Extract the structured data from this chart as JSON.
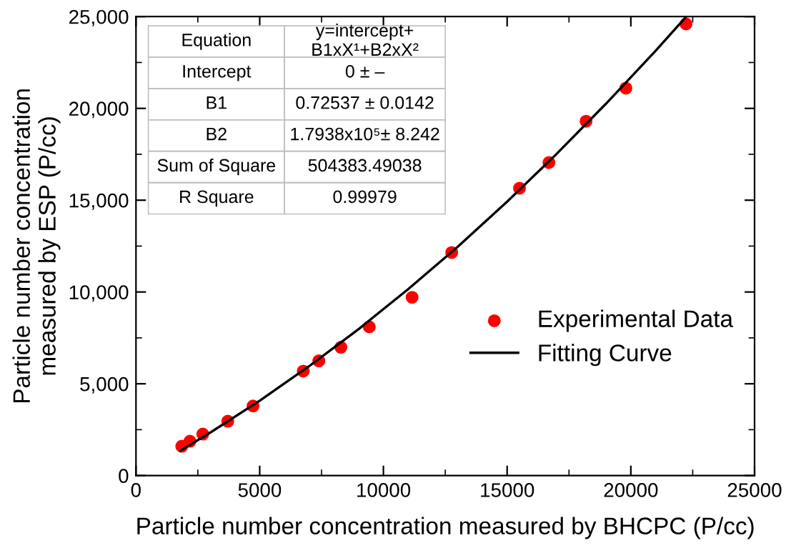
{
  "chart_data": {
    "type": "scatter",
    "xlabel": "Particle number concentration measured by BHCPC (P/cc)",
    "ylabel": "Particle number concentration\nmeasured by ESP (P/cc)",
    "xlim": [
      0,
      25000
    ],
    "ylim": [
      0,
      25000
    ],
    "xticks": [
      0,
      5000,
      10000,
      15000,
      20000,
      25000
    ],
    "yticks": [
      0,
      {
        "value": 5000,
        "label": "5,000"
      },
      {
        "value": 10000,
        "label": "10,000"
      },
      {
        "value": 15000,
        "label": "15,000"
      },
      {
        "value": 20000,
        "label": "20,000"
      },
      {
        "value": 25000,
        "label": "25,000"
      }
    ],
    "grid": false,
    "legend": "right",
    "annotations": [
      "Equation",
      "y=intercept+\nB1xX¹+B2xX²",
      "Intercept",
      "0 ± –",
      "B1",
      "0.72537 ± 0.0142",
      "B2",
      "1.7938x10⁵± 8.242",
      "Sum of Square",
      "504383.49038",
      "R Square",
      "0.99979"
    ],
    "series": [
      {
        "name": "Experimental Data",
        "marker": "circle",
        "color": "#ff0000",
        "x": [
          1850,
          2180,
          2700,
          3710,
          4730,
          6760,
          7390,
          8280,
          9430,
          11160,
          12760,
          15500,
          16690,
          18190,
          19800,
          22230
        ],
        "values": [
          1600,
          1870,
          2260,
          2960,
          3790,
          5690,
          6250,
          6990,
          8100,
          9710,
          12150,
          15650,
          17050,
          19300,
          21100,
          24600
        ]
      },
      {
        "name": "Fitting Curve",
        "type": "line",
        "marker": "none",
        "line_style": "solid",
        "color": "#000000",
        "x": [
          1800,
          3000,
          5000,
          7000,
          9000,
          11000,
          13000,
          15000,
          17000,
          19000,
          21000,
          22200
        ],
        "values": [
          1360,
          2340,
          4080,
          5960,
          7980,
          10150,
          12460,
          14920,
          17520,
          20260,
          23140,
          24940
        ]
      }
    ]
  }
}
